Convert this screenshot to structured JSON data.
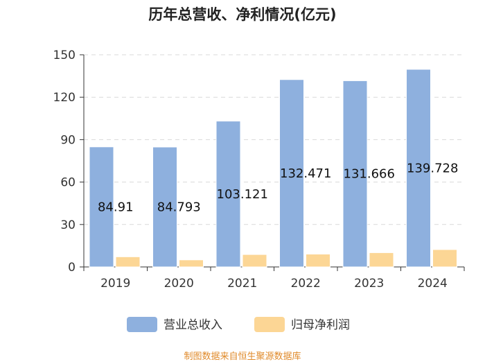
{
  "chart_data": {
    "type": "bar",
    "title": "历年总营收、净利情况(亿元)",
    "categories": [
      "2019",
      "2020",
      "2021",
      "2022",
      "2023",
      "2024"
    ],
    "series": [
      {
        "name": "营业总收入",
        "color": "#8eb0de",
        "values": [
          84.91,
          84.793,
          103.121,
          132.471,
          131.666,
          139.728
        ],
        "labels": [
          "84.91",
          "84.793",
          "103.121",
          "132.471",
          "131.666",
          "139.728"
        ]
      },
      {
        "name": "归母净利润",
        "color": "#fcd695",
        "values": [
          7.2,
          5.0,
          8.8,
          9.1,
          10.1,
          12.3
        ]
      }
    ],
    "ylim": [
      0,
      150
    ],
    "yticks": [
      "0",
      "30",
      "60",
      "90",
      "120",
      "150"
    ],
    "xlabel": "",
    "ylabel": "",
    "grid": true,
    "legend": "bottom-center"
  },
  "footer": {
    "source": "制图数据来自恒生聚源数据库"
  }
}
